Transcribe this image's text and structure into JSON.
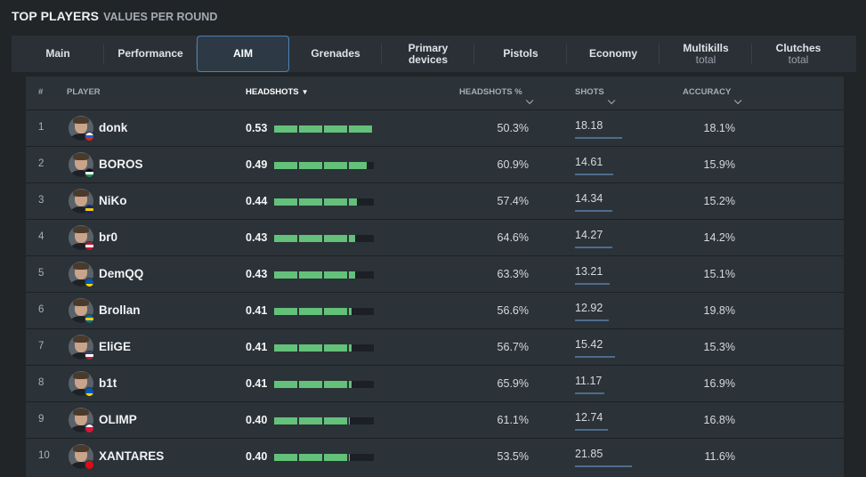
{
  "header": {
    "title": "TOP PLAYERS",
    "subtitle": "VALUES PER ROUND"
  },
  "tabs": [
    {
      "label": "Main",
      "sub": ""
    },
    {
      "label": "Performance",
      "sub": ""
    },
    {
      "label": "AIM",
      "sub": "",
      "active": true
    },
    {
      "label": "Grenades",
      "sub": ""
    },
    {
      "label": "Primary devices",
      "sub": ""
    },
    {
      "label": "Pistols",
      "sub": ""
    },
    {
      "label": "Economy",
      "sub": ""
    },
    {
      "label": "Multikills",
      "sub": "total"
    },
    {
      "label": "Clutches",
      "sub": "total"
    }
  ],
  "columns": {
    "num": "#",
    "player": "PLAYER",
    "headshots": "HEADSHOTS",
    "headshots_pct": "HEADSHOTS %",
    "shots": "SHOTS",
    "accuracy": "ACCURACY"
  },
  "accent": "#63c17a",
  "rows": [
    {
      "rank": "1",
      "name": "donk",
      "headshots": "0.53",
      "headshots_pct": "50.3%",
      "shots": "18.18",
      "accuracy": "18.1%",
      "flag": [
        "#ffffff",
        "#2a5bd7",
        "#d52b1e"
      ]
    },
    {
      "rank": "2",
      "name": "BOROS",
      "headshots": "0.49",
      "headshots_pct": "60.9%",
      "shots": "14.61",
      "accuracy": "15.9%",
      "flag": [
        "#000000",
        "#ffffff",
        "#149954"
      ]
    },
    {
      "rank": "3",
      "name": "NiKo",
      "headshots": "0.44",
      "headshots_pct": "57.4%",
      "shots": "14.34",
      "accuracy": "15.2%",
      "flag": [
        "#002395",
        "#fecb00",
        "#002395"
      ]
    },
    {
      "rank": "4",
      "name": "br0",
      "headshots": "0.43",
      "headshots_pct": "64.6%",
      "shots": "14.27",
      "accuracy": "14.2%",
      "flag": [
        "#c8102e",
        "#ffffff",
        "#c8102e"
      ]
    },
    {
      "rank": "5",
      "name": "DemQQ",
      "headshots": "0.43",
      "headshots_pct": "63.3%",
      "shots": "13.21",
      "accuracy": "15.1%",
      "flag": [
        "#0057b7",
        "#0057b7",
        "#ffd700"
      ]
    },
    {
      "rank": "6",
      "name": "Brollan",
      "headshots": "0.41",
      "headshots_pct": "56.6%",
      "shots": "12.92",
      "accuracy": "19.8%",
      "flag": [
        "#006aa7",
        "#fecc00",
        "#006aa7"
      ]
    },
    {
      "rank": "7",
      "name": "EliGE",
      "headshots": "0.41",
      "headshots_pct": "56.7%",
      "shots": "15.42",
      "accuracy": "15.3%",
      "flag": [
        "#3c3b6e",
        "#ffffff",
        "#b22234"
      ]
    },
    {
      "rank": "8",
      "name": "b1t",
      "headshots": "0.41",
      "headshots_pct": "65.9%",
      "shots": "11.17",
      "accuracy": "16.9%",
      "flag": [
        "#0057b7",
        "#0057b7",
        "#ffd700"
      ]
    },
    {
      "rank": "9",
      "name": "OLIMP",
      "headshots": "0.40",
      "headshots_pct": "61.1%",
      "shots": "12.74",
      "accuracy": "16.8%",
      "flag": [
        "#ffffff",
        "#dc143c",
        "#dc143c"
      ]
    },
    {
      "rank": "10",
      "name": "XANTARES",
      "headshots": "0.40",
      "headshots_pct": "53.5%",
      "shots": "21.85",
      "accuracy": "11.6%",
      "flag": [
        "#e30a17",
        "#e30a17",
        "#e30a17"
      ]
    }
  ]
}
